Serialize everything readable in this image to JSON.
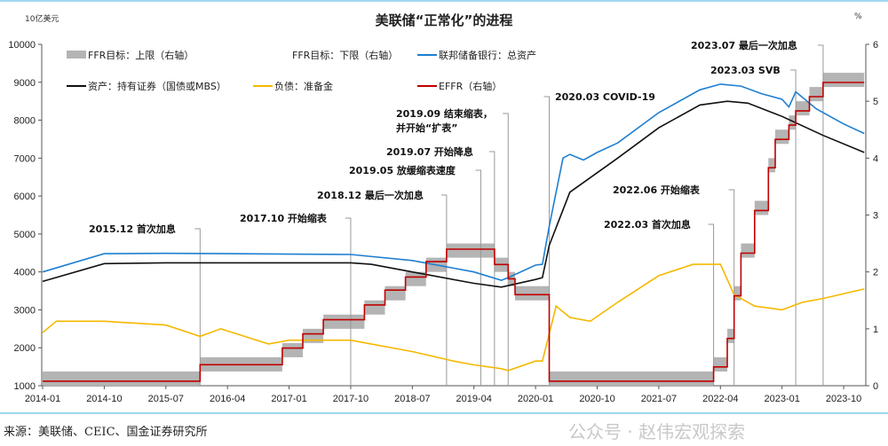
{
  "chart_data": {
    "type": "line",
    "title": "美联储“正常化”的进程",
    "ylabel_left": "10亿美元",
    "ylabel_right": "%",
    "ylim_left": [
      1000,
      10000
    ],
    "ylim_right": [
      0,
      6
    ],
    "yticks_left": [
      "1000",
      "2000",
      "3000",
      "4000",
      "5000",
      "6000",
      "7000",
      "8000",
      "9000",
      "10000"
    ],
    "yticks_right": [
      "0",
      "1",
      "2",
      "3",
      "4",
      "5",
      "6"
    ],
    "xlim": [
      "2014-01",
      "2024-01"
    ],
    "xticks": [
      "2014-01",
      "2014-10",
      "2015-07",
      "2016-04",
      "2017-01",
      "2017-10",
      "2018-07",
      "2019-04",
      "2020-01",
      "2020-10",
      "2021-07",
      "2022-04",
      "2023-01",
      "2023-10"
    ],
    "grid": false,
    "legend_position": "top-left",
    "series": [
      {
        "name": "FFR目标：上限（右轴）",
        "axis": "right",
        "kind": "step",
        "color": "#b4b4b4",
        "values": [
          [
            "2014-01",
            0.25
          ],
          [
            "2015-12",
            0.5
          ],
          [
            "2016-12",
            0.75
          ],
          [
            "2017-03",
            1.0
          ],
          [
            "2017-06",
            1.25
          ],
          [
            "2017-12",
            1.5
          ],
          [
            "2018-03",
            1.75
          ],
          [
            "2018-06",
            2.0
          ],
          [
            "2018-09",
            2.25
          ],
          [
            "2018-12",
            2.5
          ],
          [
            "2019-07",
            2.25
          ],
          [
            "2019-09",
            2.0
          ],
          [
            "2019-10",
            1.75
          ],
          [
            "2020-03",
            0.25
          ],
          [
            "2022-03",
            0.5
          ],
          [
            "2022-05",
            1.0
          ],
          [
            "2022-06",
            1.75
          ],
          [
            "2022-07",
            2.5
          ],
          [
            "2022-09",
            3.25
          ],
          [
            "2022-11",
            4.0
          ],
          [
            "2022-12",
            4.5
          ],
          [
            "2023-02",
            4.75
          ],
          [
            "2023-03",
            5.0
          ],
          [
            "2023-05",
            5.25
          ],
          [
            "2023-07",
            5.5
          ],
          [
            "2024-01",
            5.5
          ]
        ]
      },
      {
        "name": "FFR目标：下限（右轴）",
        "axis": "right",
        "kind": "step",
        "color": "#b4b4b4",
        "values": [
          [
            "2014-01",
            0
          ],
          [
            "2015-12",
            0.25
          ],
          [
            "2016-12",
            0.5
          ],
          [
            "2017-03",
            0.75
          ],
          [
            "2017-06",
            1.0
          ],
          [
            "2017-12",
            1.25
          ],
          [
            "2018-03",
            1.5
          ],
          [
            "2018-06",
            1.75
          ],
          [
            "2018-09",
            2.0
          ],
          [
            "2018-12",
            2.25
          ],
          [
            "2019-07",
            2.0
          ],
          [
            "2019-09",
            1.75
          ],
          [
            "2019-10",
            1.5
          ],
          [
            "2020-03",
            0
          ],
          [
            "2022-03",
            0.25
          ],
          [
            "2022-05",
            0.75
          ],
          [
            "2022-06",
            1.5
          ],
          [
            "2022-07",
            2.25
          ],
          [
            "2022-09",
            3.0
          ],
          [
            "2022-11",
            3.75
          ],
          [
            "2022-12",
            4.25
          ],
          [
            "2023-02",
            4.5
          ],
          [
            "2023-03",
            4.75
          ],
          [
            "2023-05",
            5.0
          ],
          [
            "2023-07",
            5.25
          ],
          [
            "2024-01",
            5.25
          ]
        ]
      },
      {
        "name": "联邦储备银行：总资产",
        "axis": "left",
        "kind": "line",
        "color": "#1f7fd0",
        "values": [
          [
            "2014-01",
            4000
          ],
          [
            "2014-10",
            4480
          ],
          [
            "2015-07",
            4490
          ],
          [
            "2016-04",
            4480
          ],
          [
            "2017-01",
            4470
          ],
          [
            "2017-10",
            4460
          ],
          [
            "2018-07",
            4300
          ],
          [
            "2019-01",
            4100
          ],
          [
            "2019-04",
            4000
          ],
          [
            "2019-08",
            3780
          ],
          [
            "2019-09",
            3850
          ],
          [
            "2020-01",
            4180
          ],
          [
            "2020-02",
            4200
          ],
          [
            "2020-03",
            5200
          ],
          [
            "2020-05",
            7000
          ],
          [
            "2020-06",
            7100
          ],
          [
            "2020-08",
            6950
          ],
          [
            "2020-10",
            7150
          ],
          [
            "2021-01",
            7400
          ],
          [
            "2021-07",
            8200
          ],
          [
            "2022-01",
            8800
          ],
          [
            "2022-04",
            8950
          ],
          [
            "2022-07",
            8900
          ],
          [
            "2022-10",
            8700
          ],
          [
            "2023-01",
            8550
          ],
          [
            "2023-02",
            8350
          ],
          [
            "2023-03",
            8750
          ],
          [
            "2023-06",
            8300
          ],
          [
            "2023-10",
            7900
          ],
          [
            "2024-01",
            7650
          ]
        ]
      },
      {
        "name": "资产：持有证券（国债或MBS）",
        "axis": "left",
        "kind": "line",
        "color": "#111111",
        "values": [
          [
            "2014-01",
            3750
          ],
          [
            "2014-10",
            4220
          ],
          [
            "2015-07",
            4240
          ],
          [
            "2016-04",
            4240
          ],
          [
            "2017-10",
            4240
          ],
          [
            "2018-01",
            4200
          ],
          [
            "2018-07",
            4000
          ],
          [
            "2019-04",
            3700
          ],
          [
            "2019-08",
            3600
          ],
          [
            "2020-01",
            3800
          ],
          [
            "2020-02",
            3850
          ],
          [
            "2020-03",
            4700
          ],
          [
            "2020-06",
            6100
          ],
          [
            "2021-01",
            7000
          ],
          [
            "2021-07",
            7800
          ],
          [
            "2022-01",
            8400
          ],
          [
            "2022-05",
            8500
          ],
          [
            "2022-08",
            8450
          ],
          [
            "2023-01",
            8100
          ],
          [
            "2023-07",
            7600
          ],
          [
            "2024-01",
            7150
          ]
        ]
      },
      {
        "name": "负债：准备金",
        "axis": "left",
        "kind": "line",
        "color": "#f5b800",
        "values": [
          [
            "2014-01",
            2400
          ],
          [
            "2014-03",
            2700
          ],
          [
            "2014-10",
            2700
          ],
          [
            "2015-07",
            2600
          ],
          [
            "2015-12",
            2300
          ],
          [
            "2016-03",
            2500
          ],
          [
            "2016-10",
            2100
          ],
          [
            "2017-01",
            2200
          ],
          [
            "2017-10",
            2200
          ],
          [
            "2018-07",
            1900
          ],
          [
            "2019-01",
            1650
          ],
          [
            "2019-04",
            1550
          ],
          [
            "2019-08",
            1450
          ],
          [
            "2019-09",
            1400
          ],
          [
            "2020-01",
            1650
          ],
          [
            "2020-02",
            1650
          ],
          [
            "2020-04",
            3100
          ],
          [
            "2020-06",
            2800
          ],
          [
            "2020-09",
            2700
          ],
          [
            "2021-01",
            3200
          ],
          [
            "2021-07",
            3900
          ],
          [
            "2021-12",
            4200
          ],
          [
            "2022-04",
            4200
          ],
          [
            "2022-06",
            3400
          ],
          [
            "2022-09",
            3100
          ],
          [
            "2023-01",
            3000
          ],
          [
            "2023-04",
            3200
          ],
          [
            "2023-07",
            3300
          ],
          [
            "2024-01",
            3550
          ]
        ]
      },
      {
        "name": "EFFR（右轴）",
        "axis": "right",
        "kind": "step",
        "color": "#c00000",
        "values": [
          [
            "2014-01",
            0.08
          ],
          [
            "2015-12",
            0.37
          ],
          [
            "2016-12",
            0.66
          ],
          [
            "2017-03",
            0.91
          ],
          [
            "2017-06",
            1.16
          ],
          [
            "2017-12",
            1.42
          ],
          [
            "2018-03",
            1.68
          ],
          [
            "2018-06",
            1.91
          ],
          [
            "2018-09",
            2.18
          ],
          [
            "2018-12",
            2.4
          ],
          [
            "2019-07",
            2.13
          ],
          [
            "2019-09",
            1.88
          ],
          [
            "2019-10",
            1.6
          ],
          [
            "2020-03",
            0.08
          ],
          [
            "2022-03",
            0.33
          ],
          [
            "2022-05",
            0.83
          ],
          [
            "2022-06",
            1.58
          ],
          [
            "2022-07",
            2.33
          ],
          [
            "2022-09",
            3.08
          ],
          [
            "2022-11",
            3.83
          ],
          [
            "2022-12",
            4.33
          ],
          [
            "2023-02",
            4.58
          ],
          [
            "2023-03",
            4.83
          ],
          [
            "2023-05",
            5.08
          ],
          [
            "2023-07",
            5.33
          ],
          [
            "2024-01",
            5.33
          ]
        ]
      }
    ],
    "annotations": [
      {
        "date": "2015-12",
        "text": "2015.12 首次加息"
      },
      {
        "date": "2017-10",
        "text": "2017.10 开始缩表"
      },
      {
        "date": "2018-12",
        "text": "2018.12 最后一次加息"
      },
      {
        "date": "2019-05",
        "text": "2019.05 放缓缩表速度"
      },
      {
        "date": "2019-07",
        "text": "2019.07 开始降息"
      },
      {
        "date": "2019-09",
        "text": "2019.09 结束缩表，",
        "text2": "并开始“扩表”"
      },
      {
        "date": "2020-03",
        "text": "2020.03 COVID-19"
      },
      {
        "date": "2022-03",
        "text": "2022.03 首次加息"
      },
      {
        "date": "2022-06",
        "text": "2022.06 开始缩表"
      },
      {
        "date": "2023-03",
        "text": "2023.03 SVB"
      },
      {
        "date": "2023-07",
        "text": "2023.07 最后一次加息"
      }
    ]
  },
  "source": "来源：美联储、CEIC、国金证券研究所",
  "watermark": "公众号 · 赵伟宏观探索"
}
